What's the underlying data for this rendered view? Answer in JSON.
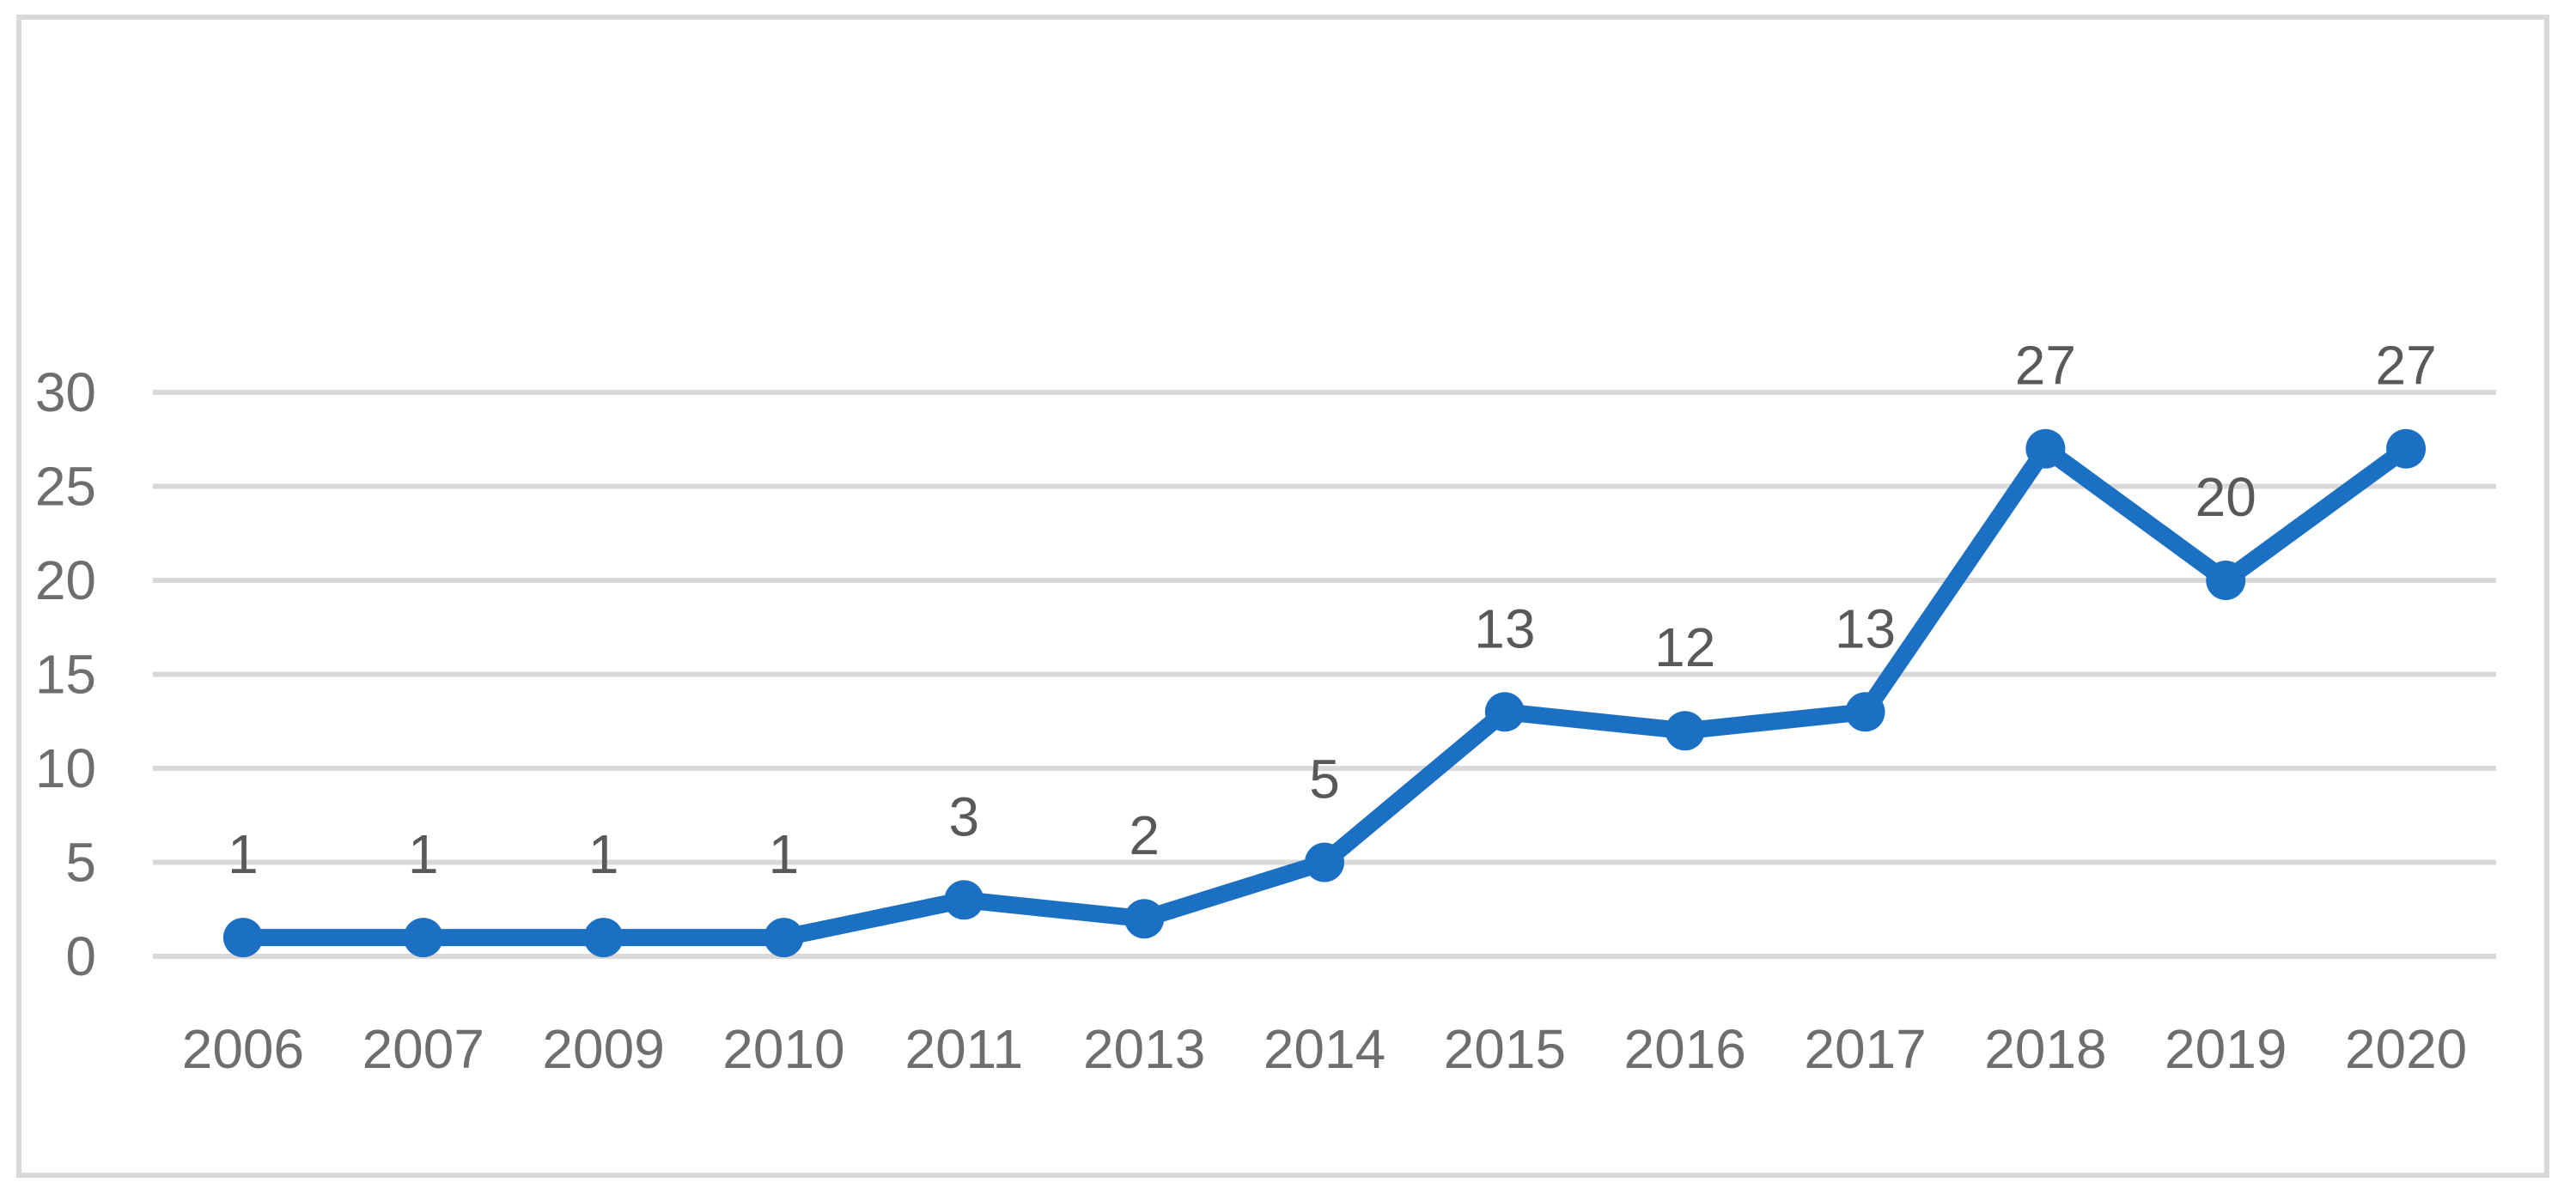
{
  "chart_data": {
    "type": "line",
    "title": "",
    "xlabel": "",
    "ylabel": "",
    "categories": [
      "2006",
      "2007",
      "2009",
      "2010",
      "2011",
      "2013",
      "2014",
      "2015",
      "2016",
      "2017",
      "2018",
      "2019",
      "2020"
    ],
    "values": [
      1,
      1,
      1,
      1,
      3,
      2,
      5,
      13,
      12,
      13,
      27,
      20,
      27
    ],
    "data_labels": [
      "1",
      "1",
      "1",
      "1",
      "3",
      "2",
      "5",
      "13",
      "12",
      "13",
      "27",
      "20",
      "27"
    ],
    "show_data_labels": true,
    "yticks": [
      "0",
      "5",
      "10",
      "15",
      "20",
      "25",
      "30"
    ],
    "ytick_values": [
      0,
      5,
      10,
      15,
      20,
      25,
      30
    ],
    "ylim": [
      0,
      30
    ],
    "grid": "horizontal",
    "legend": "none",
    "marker": "circle",
    "colors": {
      "line": "#1b70c4",
      "marker": "#1b70c4",
      "gridline": "#d9d9d9",
      "frame_border": "#d9d9d9",
      "axis_tick_label": "#6e6e6e",
      "data_label": "#595959",
      "background": "#ffffff"
    }
  }
}
